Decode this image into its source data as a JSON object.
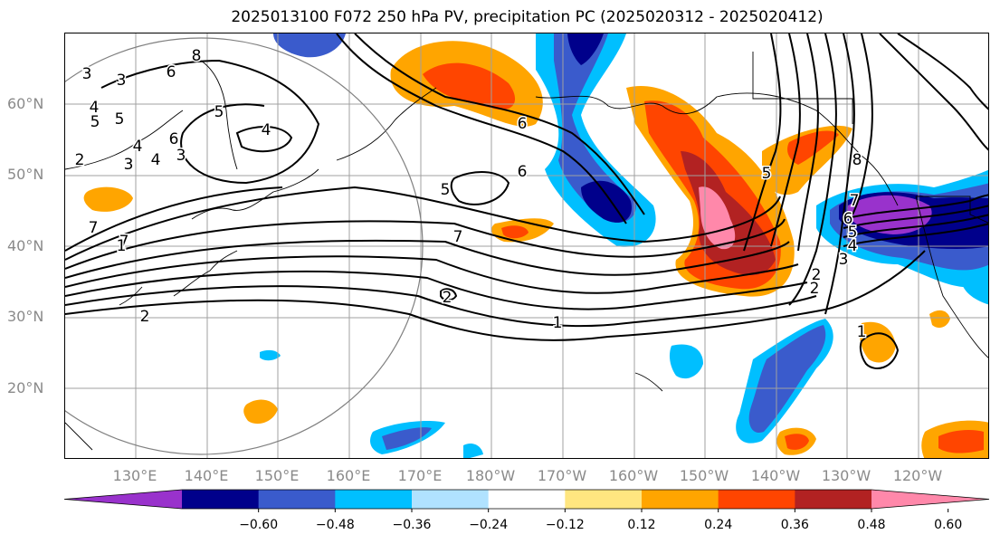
{
  "title": "2025013100 F072 250 hPa PV, precipitation PC (2025020312 - 2025020412)",
  "lat_labels": [
    "60°N",
    "50°N",
    "40°N",
    "30°N",
    "20°N"
  ],
  "lon_labels": [
    "130°E",
    "140°E",
    "150°E",
    "160°E",
    "170°E",
    "180°W",
    "170°W",
    "160°W",
    "150°W",
    "140°W",
    "130°W",
    "120°W"
  ],
  "contour_labels": [
    "3",
    "8",
    "6",
    "4",
    "5",
    "5",
    "4",
    "2",
    "7",
    "7",
    "3",
    "4",
    "3",
    "6",
    "5",
    "6",
    "7",
    "2",
    "1",
    "1",
    "2",
    "2",
    "3",
    "4",
    "5",
    "6",
    "7",
    "8",
    "6",
    "5",
    "1",
    "2",
    "3",
    "4",
    "5"
  ],
  "colorbar": {
    "colors": [
      "#9932cc",
      "#00008b",
      "#3a5bcc",
      "#00bfff",
      "#b0e2ff",
      "#ffffff",
      "#ffe680",
      "#ffa500",
      "#ff4500",
      "#b22222",
      "#ff88aa"
    ],
    "ticks": [
      "−0.60",
      "−0.48",
      "−0.36",
      "−0.24",
      "−0.12",
      "0.12",
      "0.24",
      "0.36",
      "0.48",
      "0.60"
    ]
  }
}
